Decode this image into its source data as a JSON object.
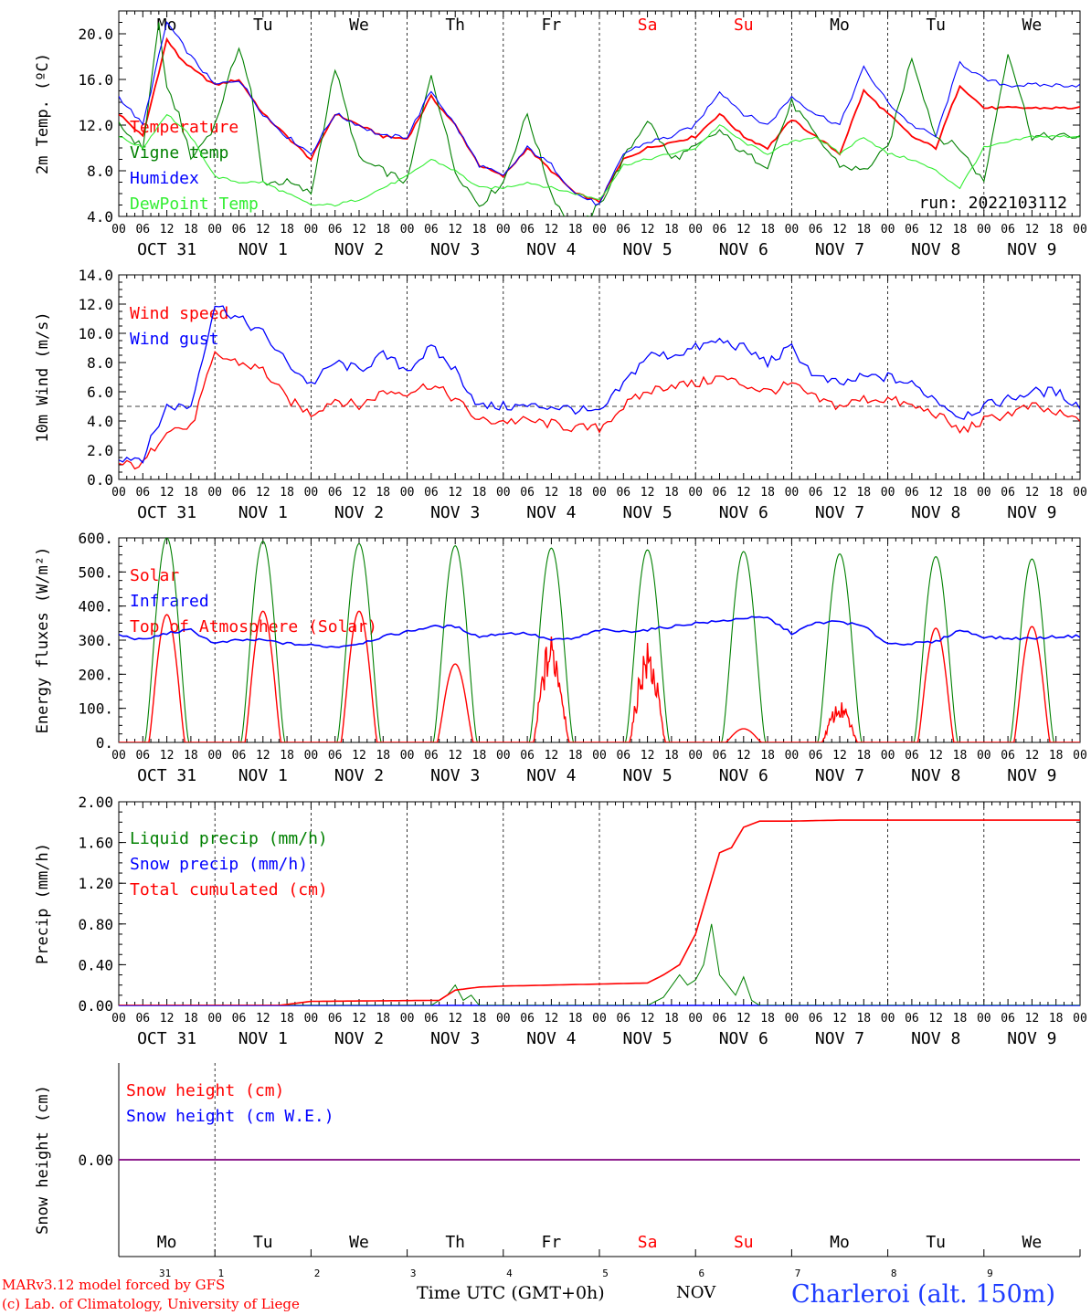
{
  "footer": {
    "credit1": "MARv3.12 model forced by GFS",
    "credit2": "(c) Lab. of Climatology, University of Liege",
    "xlabel": "Time UTC (GMT+0h)",
    "month": "NOV",
    "station": "Charleroi (alt. 150m)"
  },
  "run_label": "run: 2022103112",
  "days": [
    "Mo",
    "Tu",
    "We",
    "Th",
    "Fr",
    "Sa",
    "Su",
    "Mo",
    "Tu",
    "We"
  ],
  "weekend_days": [
    "Sa",
    "Su"
  ],
  "day_numbers": [
    "31",
    "1",
    "2",
    "3",
    "4",
    "5",
    "6",
    "7",
    "8",
    "9"
  ],
  "date_labels": [
    "OCT 31",
    "NOV  1",
    "NOV  2",
    "NOV  3",
    "NOV  4",
    "NOV  5",
    "NOV  6",
    "NOV  7",
    "NOV  8",
    "NOV  9"
  ],
  "hour_ticks": [
    "00",
    "06",
    "12",
    "18"
  ],
  "last_tick": "00",
  "colors": {
    "red": "#ff0000",
    "green": "#008000",
    "blue": "#0000ff",
    "lightgreen": "#33ee33",
    "purple": "#7f007f",
    "station": "#1e3cff"
  },
  "chart_data": [
    {
      "type": "line",
      "ylabel": "2m Temp. (ºC)",
      "ylim": [
        4.0,
        22.0
      ],
      "yticks": [
        "4.0",
        "8.0",
        "12.0",
        "16.0",
        "20.0"
      ],
      "x_unit": "hours since Oct 31 00 UTC",
      "legend": [
        "Temperature",
        "Vigne temp",
        "Humidex",
        "DewPoint Temp"
      ],
      "series": [
        {
          "name": "Temperature",
          "color": "red",
          "x": [
            0,
            6,
            12,
            15,
            18,
            24,
            30,
            36,
            42,
            48,
            54,
            60,
            66,
            72,
            78,
            84,
            90,
            96,
            102,
            108,
            114,
            120,
            126,
            132,
            138,
            144,
            150,
            156,
            162,
            168,
            174,
            180,
            186,
            192,
            198,
            204,
            210,
            216,
            222,
            228,
            234,
            240
          ],
          "y": [
            13,
            11,
            19.5,
            18,
            17,
            15.5,
            16,
            13,
            11,
            9,
            13,
            12,
            11,
            10.8,
            14.5,
            12,
            8.5,
            7.5,
            10,
            8,
            6,
            5.3,
            9,
            10,
            10.5,
            11,
            13,
            11,
            10,
            12.5,
            11,
            9.5,
            15,
            13,
            11,
            10,
            15.5,
            13.5,
            13.5,
            13.5,
            13.5,
            13.5
          ]
        },
        {
          "name": "Vigne temp",
          "color": "green",
          "x": [
            0,
            6,
            10,
            12,
            15,
            18,
            24,
            30,
            33,
            36,
            42,
            48,
            54,
            60,
            66,
            72,
            78,
            84,
            90,
            96,
            102,
            108,
            114,
            120,
            126,
            132,
            138,
            144,
            150,
            156,
            162,
            168,
            174,
            180,
            186,
            192,
            198,
            204,
            210,
            216,
            222,
            228,
            234,
            240
          ],
          "y": [
            12,
            10,
            21,
            15,
            13,
            9,
            12,
            19,
            15,
            7,
            7,
            6,
            17,
            9,
            8,
            7,
            16.5,
            8,
            5,
            7,
            13,
            6,
            2.5,
            5,
            9,
            12.5,
            9,
            10,
            11.5,
            9.5,
            8.5,
            14,
            11,
            8.5,
            8,
            10,
            18,
            11,
            10,
            7,
            18.5,
            11,
            11,
            11
          ]
        },
        {
          "name": "Humidex",
          "color": "blue",
          "x": [
            0,
            6,
            12,
            18,
            24,
            30,
            36,
            42,
            48,
            54,
            60,
            66,
            72,
            78,
            84,
            90,
            96,
            102,
            108,
            114,
            120,
            126,
            132,
            138,
            144,
            150,
            156,
            162,
            168,
            174,
            180,
            186,
            192,
            198,
            204,
            210,
            216,
            222,
            228,
            234,
            240
          ],
          "y": [
            14.5,
            12,
            21,
            18,
            15.5,
            16,
            13,
            11,
            9.5,
            13,
            12,
            11,
            11,
            15,
            12,
            8.5,
            7.5,
            10,
            8.5,
            6,
            5,
            9.5,
            10.5,
            11,
            12,
            15,
            13,
            12,
            14.5,
            13,
            12,
            17,
            14,
            12,
            11,
            17.5,
            16,
            15.5,
            15.5,
            15.5,
            15.5
          ]
        },
        {
          "name": "DewPoint Temp",
          "color": "lightgreen",
          "x": [
            0,
            6,
            12,
            18,
            24,
            30,
            36,
            42,
            48,
            54,
            60,
            66,
            72,
            78,
            84,
            90,
            96,
            102,
            108,
            114,
            120,
            126,
            132,
            138,
            144,
            150,
            156,
            162,
            168,
            174,
            180,
            186,
            192,
            198,
            204,
            210,
            216,
            222,
            228,
            234,
            240
          ],
          "y": [
            11,
            10,
            13,
            11,
            7.5,
            7,
            7,
            6,
            5,
            5,
            5.5,
            6.5,
            7.5,
            9,
            8,
            6.5,
            6.5,
            7,
            6.5,
            6,
            5.5,
            8.5,
            9,
            9.5,
            10,
            12,
            10.5,
            9.5,
            10.5,
            11,
            9.5,
            11,
            9.5,
            9,
            8,
            6.5,
            10,
            10.5,
            11,
            11,
            11
          ]
        }
      ]
    },
    {
      "type": "line",
      "ylabel": "10m Wind (m/s)",
      "ylim": [
        0.0,
        14.0
      ],
      "yticks": [
        "0.0",
        "2.0",
        "4.0",
        "6.0",
        "8.0",
        "10.0",
        "12.0",
        "14.0"
      ],
      "reference_line": 5.0,
      "legend": [
        "Wind speed",
        "Wind gust"
      ],
      "series": [
        {
          "name": "Wind speed",
          "color": "red",
          "x": [
            0,
            6,
            12,
            18,
            24,
            30,
            36,
            42,
            48,
            54,
            60,
            66,
            72,
            78,
            84,
            90,
            96,
            102,
            108,
            114,
            120,
            126,
            132,
            138,
            144,
            150,
            156,
            162,
            168,
            174,
            180,
            186,
            192,
            198,
            204,
            210,
            216,
            222,
            228,
            234,
            240
          ],
          "y": [
            1,
            1,
            3.5,
            3.5,
            8.5,
            8,
            7.5,
            5.5,
            4.5,
            5.5,
            5,
            6,
            6,
            6.5,
            5.5,
            4,
            4,
            4,
            3.8,
            3.5,
            3.5,
            5,
            6,
            6.5,
            6.5,
            7,
            6.5,
            6,
            6.5,
            5.5,
            5,
            5.5,
            5.5,
            5,
            4.5,
            3.3,
            4,
            4.5,
            5,
            4.5,
            4
          ]
        },
        {
          "name": "Wind gust",
          "color": "blue",
          "x": [
            0,
            6,
            12,
            18,
            24,
            30,
            36,
            42,
            48,
            54,
            60,
            66,
            72,
            78,
            84,
            90,
            96,
            102,
            108,
            114,
            120,
            126,
            132,
            138,
            144,
            150,
            156,
            162,
            168,
            174,
            180,
            186,
            192,
            198,
            204,
            210,
            216,
            222,
            228,
            234,
            240
          ],
          "y": [
            1.5,
            1.5,
            5,
            5,
            12,
            11,
            10,
            8,
            6.5,
            8,
            7.5,
            8.5,
            7.5,
            9,
            7.5,
            5,
            5,
            5,
            5,
            4.8,
            4.5,
            6.5,
            8.5,
            8.5,
            9,
            9.5,
            9,
            8,
            9,
            7,
            6.5,
            7,
            7,
            6.5,
            5.5,
            4.3,
            5,
            5.5,
            6,
            6,
            5
          ]
        }
      ]
    },
    {
      "type": "line",
      "ylabel": "Energy fluxes (W/m²)",
      "ylim": [
        0,
        600
      ],
      "yticks": [
        "0.",
        "100.",
        "200.",
        "300.",
        "400.",
        "500.",
        "600."
      ],
      "legend": [
        "Solar",
        "Infrared",
        "Top of Atmosphere (Solar)"
      ],
      "solar_peaks": [
        375,
        385,
        385,
        230,
        330,
        300,
        40,
        120,
        335,
        340
      ],
      "toa_peaks": [
        600,
        590,
        583,
        577,
        570,
        565,
        560,
        553,
        545,
        538
      ],
      "series": [
        {
          "name": "Infrared",
          "color": "blue",
          "x": [
            0,
            6,
            12,
            18,
            24,
            30,
            36,
            42,
            48,
            54,
            60,
            66,
            72,
            78,
            84,
            90,
            96,
            102,
            108,
            114,
            120,
            126,
            132,
            138,
            144,
            150,
            156,
            162,
            168,
            174,
            180,
            186,
            192,
            198,
            204,
            210,
            216,
            222,
            228,
            234,
            240
          ],
          "y": [
            315,
            300,
            320,
            330,
            290,
            300,
            300,
            290,
            285,
            280,
            290,
            310,
            325,
            340,
            340,
            310,
            320,
            320,
            300,
            305,
            330,
            325,
            330,
            340,
            350,
            355,
            365,
            365,
            320,
            350,
            355,
            340,
            290,
            290,
            295,
            330,
            310,
            305,
            305,
            310,
            312
          ]
        }
      ]
    },
    {
      "type": "line",
      "ylabel": "Precip (mm/h)",
      "ylim": [
        0.0,
        2.0
      ],
      "yticks": [
        "0.00",
        "0.40",
        "0.80",
        "1.20",
        "1.60",
        "2.00"
      ],
      "legend": [
        "Liquid precip (mm/h)",
        "Snow precip (mm/h)",
        "Total cumulated (cm)"
      ],
      "series": [
        {
          "name": "Total cumulated (cm)",
          "color": "red",
          "x": [
            0,
            40,
            48,
            80,
            84,
            90,
            96,
            108,
            120,
            132,
            136,
            140,
            144,
            147,
            150,
            153,
            156,
            160,
            164,
            168,
            180,
            200,
            240
          ],
          "y": [
            0,
            0,
            0.04,
            0.05,
            0.15,
            0.18,
            0.19,
            0.2,
            0.21,
            0.22,
            0.3,
            0.4,
            0.7,
            1.1,
            1.5,
            1.55,
            1.75,
            1.81,
            1.81,
            1.81,
            1.82,
            1.82,
            1.82
          ]
        },
        {
          "name": "Liquid precip (mm/h)",
          "color": "green",
          "x": [
            0,
            78,
            80,
            82,
            84,
            86,
            88,
            90,
            132,
            136,
            140,
            142,
            144,
            146,
            148,
            150,
            152,
            154,
            156,
            158,
            160,
            240
          ],
          "y": [
            0,
            0,
            0.05,
            0.1,
            0.2,
            0.05,
            0.1,
            0,
            0,
            0.08,
            0.3,
            0.2,
            0.25,
            0.4,
            0.8,
            0.3,
            0.2,
            0.1,
            0.28,
            0.05,
            0,
            0
          ]
        }
      ]
    },
    {
      "type": "line",
      "ylabel": "Snow height (cm)",
      "yticks": [
        "0.00"
      ],
      "legend": [
        "Snow height (cm)",
        "Snow height (cm W.E.)"
      ],
      "series": [
        {
          "name": "Snow height (cm)",
          "color": "red",
          "x": [
            0,
            240
          ],
          "y": [
            0,
            0
          ]
        },
        {
          "name": "Snow height (cm W.E.)",
          "color": "blue",
          "x": [
            0,
            240
          ],
          "y": [
            0,
            0
          ]
        }
      ]
    }
  ]
}
